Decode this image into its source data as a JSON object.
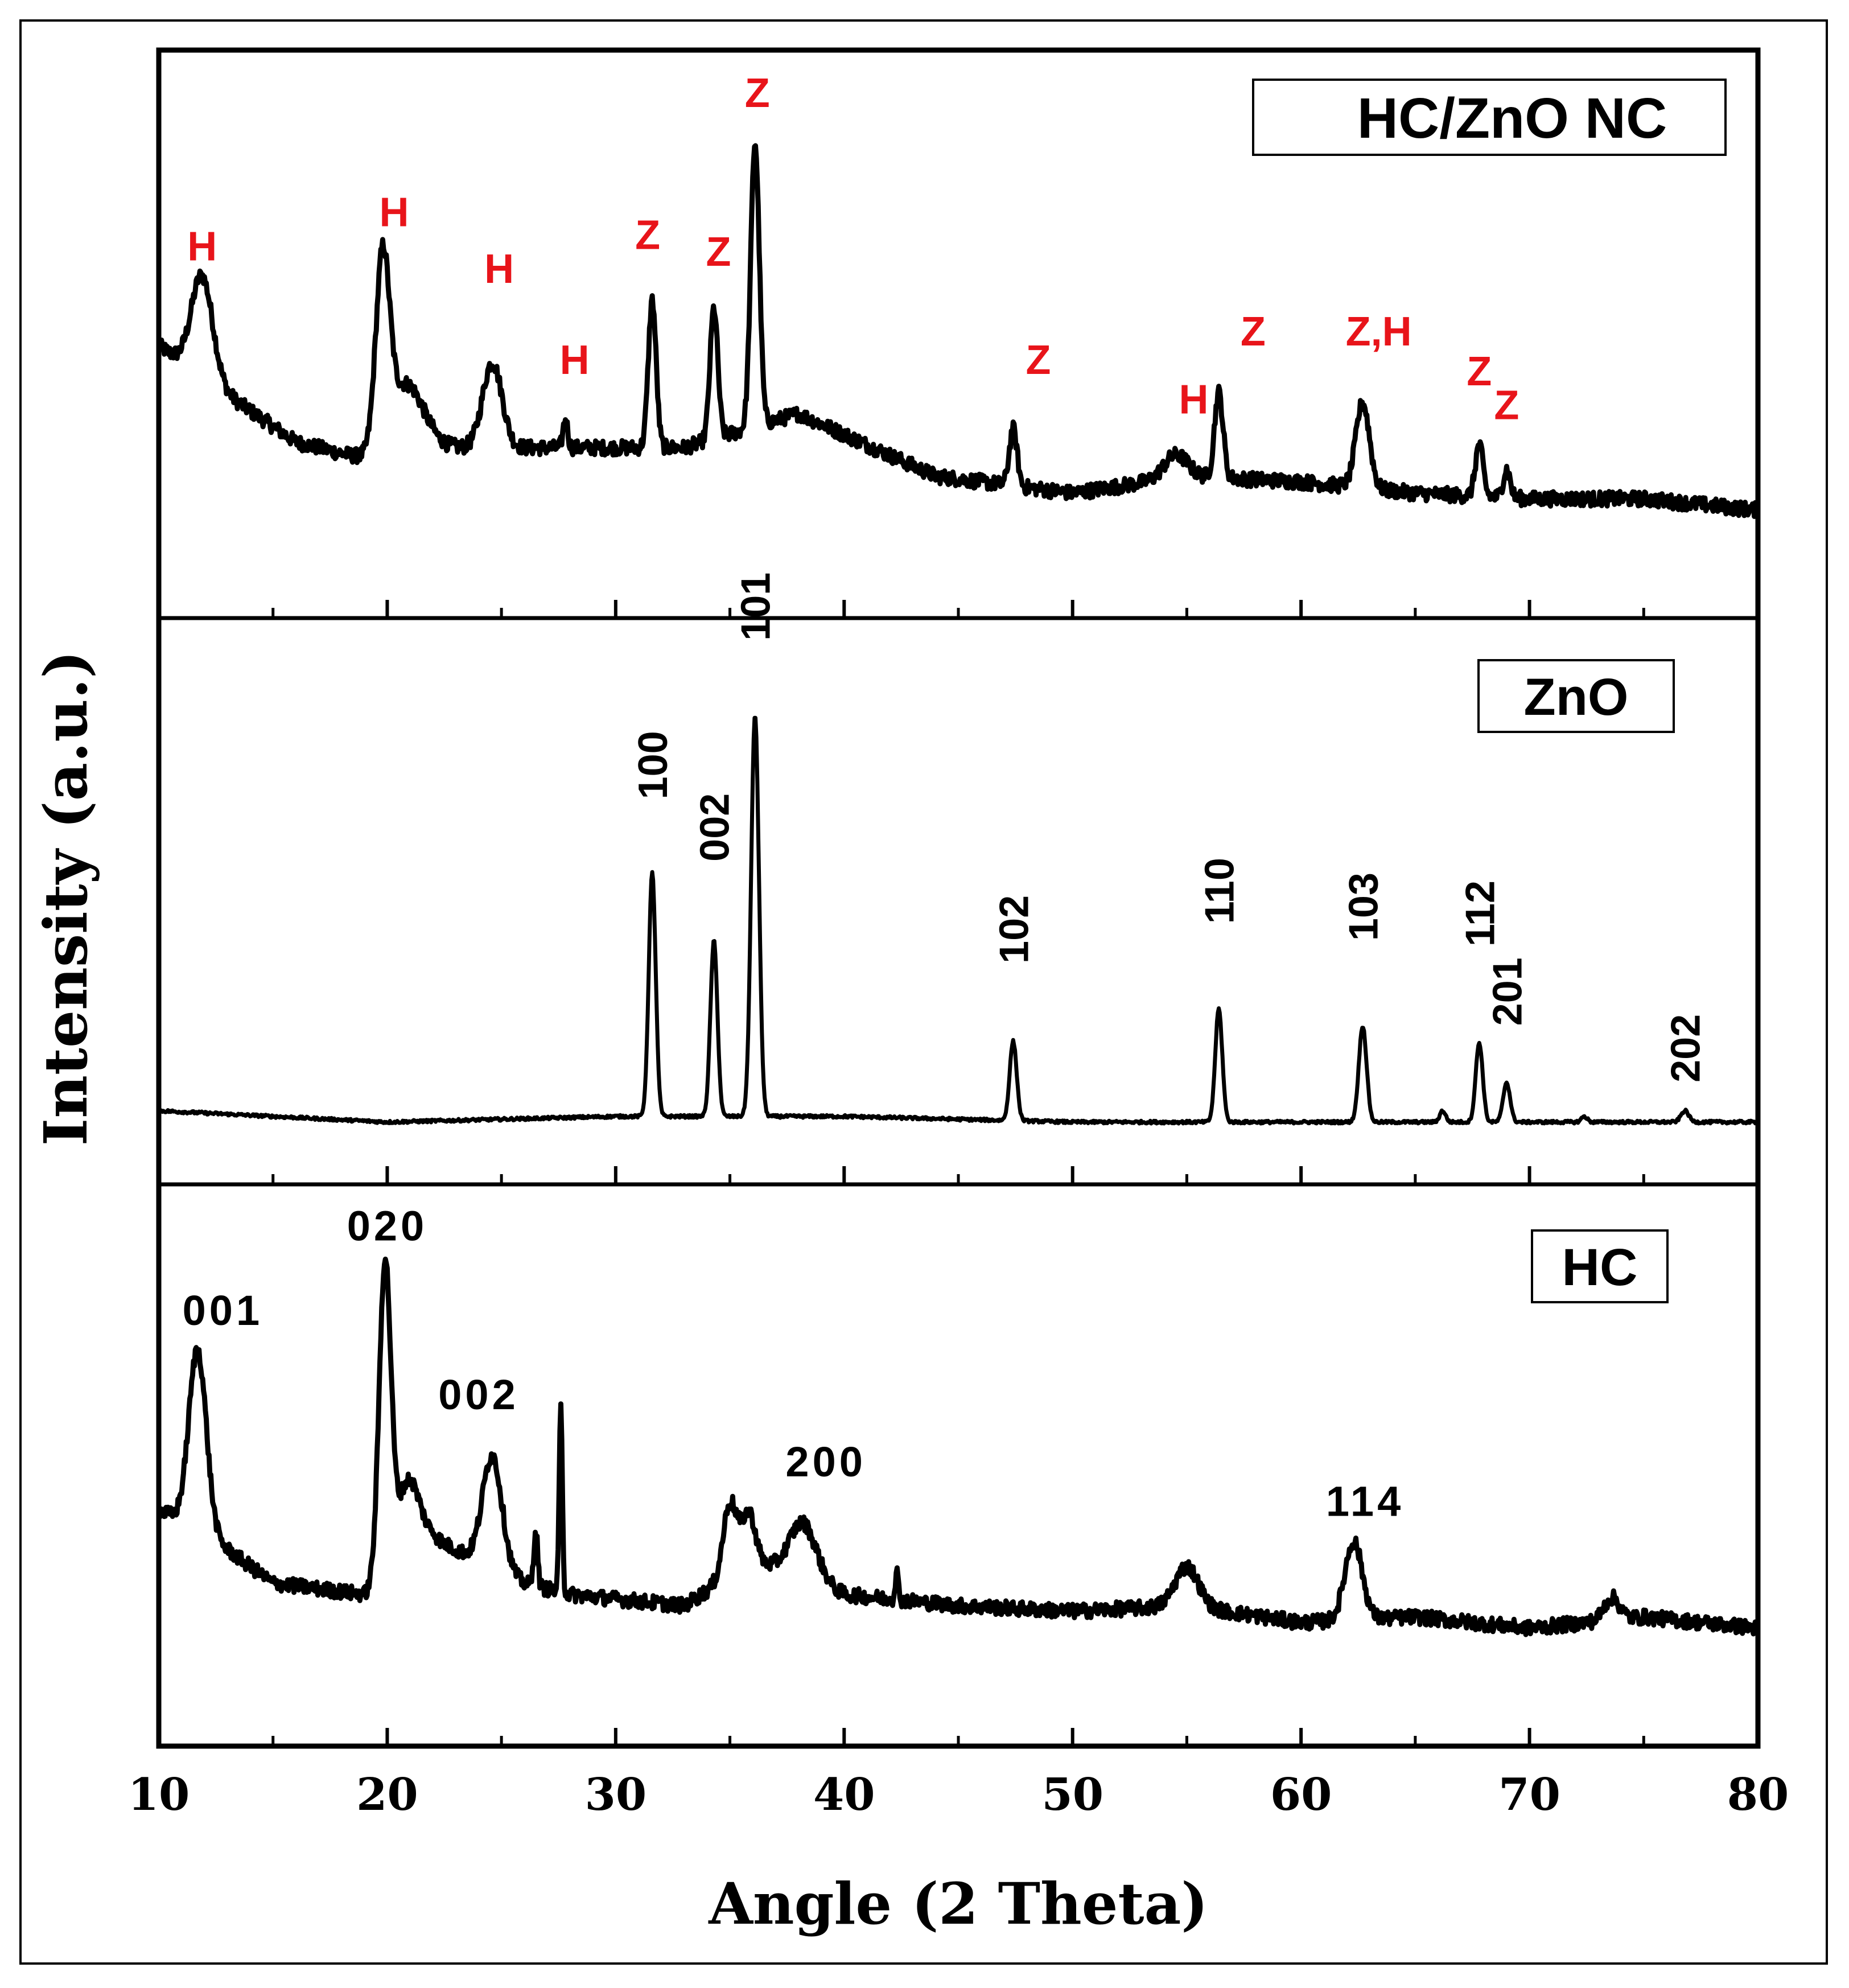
{
  "colors": {
    "trace": "#000000",
    "annotation_red": "#e8141a",
    "frame": "#000000",
    "background": "#ffffff"
  },
  "chart_data": {
    "type": "line",
    "title": "",
    "xlabel": "Angle (2 Theta)",
    "ylabel": "Intensity (a.u.)",
    "xlim": [
      10,
      80
    ],
    "xticks": [
      "10",
      "20",
      "30",
      "40",
      "50",
      "60",
      "70",
      "80"
    ],
    "grid": false,
    "panels": [
      {
        "name": "HC/ZnO NC",
        "legend": "HC/ZnO NC",
        "ylim": [
          0,
          100
        ],
        "baseline": [
          [
            10,
            48
          ],
          [
            12,
            42
          ],
          [
            16,
            31
          ],
          [
            19,
            28
          ],
          [
            22,
            30
          ],
          [
            28,
            30
          ],
          [
            33,
            30
          ],
          [
            38,
            36
          ],
          [
            44,
            25
          ],
          [
            50,
            22
          ],
          [
            55,
            25
          ],
          [
            60,
            24
          ],
          [
            65,
            22
          ],
          [
            70,
            21
          ],
          [
            75,
            21
          ],
          [
            80,
            19
          ]
        ],
        "peaks": [
          {
            "x": 11.9,
            "h": 18,
            "w": 0.55
          },
          {
            "x": 19.8,
            "h": 32,
            "w": 0.35
          },
          {
            "x": 20.8,
            "h": 12,
            "w": 0.9
          },
          {
            "x": 24.6,
            "h": 15,
            "w": 0.5
          },
          {
            "x": 27.8,
            "h": 5,
            "w": 0.12
          },
          {
            "x": 31.6,
            "h": 26,
            "w": 0.2
          },
          {
            "x": 34.3,
            "h": 23,
            "w": 0.2
          },
          {
            "x": 36.1,
            "h": 50,
            "w": 0.22
          },
          {
            "x": 47.4,
            "h": 10,
            "w": 0.2
          },
          {
            "x": 54.5,
            "h": 4,
            "w": 0.6
          },
          {
            "x": 56.4,
            "h": 15,
            "w": 0.22
          },
          {
            "x": 62.7,
            "h": 15,
            "w": 0.35
          },
          {
            "x": 67.8,
            "h": 9,
            "w": 0.2
          },
          {
            "x": 69.0,
            "h": 5,
            "w": 0.18
          }
        ],
        "annotations": [
          {
            "text": "H",
            "x": 11.9,
            "y": 63,
            "color": "red"
          },
          {
            "text": "H",
            "x": 20.3,
            "y": 69,
            "color": "red"
          },
          {
            "text": "H",
            "x": 24.9,
            "y": 59,
            "color": "red"
          },
          {
            "text": "H",
            "x": 28.2,
            "y": 43,
            "color": "red"
          },
          {
            "text": "Z",
            "x": 31.4,
            "y": 65,
            "color": "red"
          },
          {
            "text": "Z",
            "x": 34.5,
            "y": 62,
            "color": "red"
          },
          {
            "text": "Z",
            "x": 36.2,
            "y": 90,
            "color": "red"
          },
          {
            "text": "Z",
            "x": 48.5,
            "y": 43,
            "color": "red"
          },
          {
            "text": "H",
            "x": 55.3,
            "y": 36,
            "color": "red"
          },
          {
            "text": "Z",
            "x": 57.9,
            "y": 48,
            "color": "red"
          },
          {
            "text": "Z,H",
            "x": 63.4,
            "y": 48,
            "color": "red"
          },
          {
            "text": "Z",
            "x": 67.8,
            "y": 41,
            "color": "red"
          },
          {
            "text": "Z",
            "x": 69.0,
            "y": 35,
            "color": "red"
          }
        ]
      },
      {
        "name": "ZnO",
        "legend": "ZnO",
        "ylim": [
          0,
          100
        ],
        "baseline": [
          [
            10,
            13
          ],
          [
            20,
            11
          ],
          [
            30,
            12
          ],
          [
            40,
            12
          ],
          [
            50,
            11
          ],
          [
            60,
            11
          ],
          [
            70,
            11
          ],
          [
            80,
            11
          ]
        ],
        "peaks": [
          {
            "x": 31.6,
            "h": 43,
            "w": 0.18
          },
          {
            "x": 34.3,
            "h": 31,
            "w": 0.18
          },
          {
            "x": 36.1,
            "h": 71,
            "w": 0.2
          },
          {
            "x": 47.4,
            "h": 14,
            "w": 0.18
          },
          {
            "x": 56.4,
            "h": 20,
            "w": 0.18
          },
          {
            "x": 62.7,
            "h": 17,
            "w": 0.2
          },
          {
            "x": 66.2,
            "h": 2,
            "w": 0.15
          },
          {
            "x": 67.8,
            "h": 14,
            "w": 0.18
          },
          {
            "x": 69.0,
            "h": 7,
            "w": 0.18
          },
          {
            "x": 72.4,
            "h": 1,
            "w": 0.15
          },
          {
            "x": 76.8,
            "h": 2,
            "w": 0.2
          }
        ],
        "annotations": [
          {
            "text": "100",
            "x": 31.6,
            "y": 68,
            "color": "black",
            "rotate": true
          },
          {
            "text": "002",
            "x": 34.3,
            "y": 57,
            "color": "black",
            "rotate": true
          },
          {
            "text": "101",
            "x": 36.1,
            "y": 96,
            "color": "black",
            "rotate": true
          },
          {
            "text": "102",
            "x": 47.4,
            "y": 39,
            "color": "black",
            "rotate": true
          },
          {
            "text": "110",
            "x": 56.4,
            "y": 46,
            "color": "black",
            "rotate": true
          },
          {
            "text": "103",
            "x": 62.7,
            "y": 43,
            "color": "black",
            "rotate": true
          },
          {
            "text": "112",
            "x": 67.8,
            "y": 42,
            "color": "black",
            "rotate": true
          },
          {
            "text": "201",
            "x": 69.0,
            "y": 28,
            "color": "black",
            "rotate": true
          },
          {
            "text": "202",
            "x": 76.8,
            "y": 18,
            "color": "black",
            "rotate": true
          }
        ]
      },
      {
        "name": "HC",
        "legend": "HC",
        "ylim": [
          0,
          100
        ],
        "baseline": [
          [
            10,
            42
          ],
          [
            12,
            38
          ],
          [
            15,
            29
          ],
          [
            19,
            27
          ],
          [
            22,
            37
          ],
          [
            26,
            29
          ],
          [
            28,
            27
          ],
          [
            33,
            25
          ],
          [
            36,
            33
          ],
          [
            40,
            27
          ],
          [
            45,
            25
          ],
          [
            50,
            24
          ],
          [
            55,
            25
          ],
          [
            60,
            22
          ],
          [
            65,
            23
          ],
          [
            70,
            21
          ],
          [
            75,
            23
          ],
          [
            80,
            21
          ]
        ],
        "peaks": [
          {
            "x": 11.7,
            "h": 32,
            "w": 0.45
          },
          {
            "x": 19.9,
            "h": 55,
            "w": 0.3
          },
          {
            "x": 20.9,
            "h": 14,
            "w": 0.6
          },
          {
            "x": 24.6,
            "h": 20,
            "w": 0.5
          },
          {
            "x": 26.5,
            "h": 10,
            "w": 0.1
          },
          {
            "x": 27.6,
            "h": 33,
            "w": 0.08
          },
          {
            "x": 35.0,
            "h": 13,
            "w": 0.35
          },
          {
            "x": 35.8,
            "h": 9,
            "w": 0.35
          },
          {
            "x": 38.2,
            "h": 10,
            "w": 0.7
          },
          {
            "x": 42.3,
            "h": 5,
            "w": 0.08
          },
          {
            "x": 55.0,
            "h": 7,
            "w": 0.6
          },
          {
            "x": 62.3,
            "h": 14,
            "w": 0.45
          },
          {
            "x": 73.6,
            "h": 4,
            "w": 0.4
          }
        ],
        "annotations": [
          {
            "text": "001",
            "x": 12.8,
            "y": 75,
            "color": "black"
          },
          {
            "text": "020",
            "x": 20.0,
            "y": 90,
            "color": "black"
          },
          {
            "text": "002",
            "x": 24.0,
            "y": 60,
            "color": "black"
          },
          {
            "text": "200",
            "x": 39.2,
            "y": 48,
            "color": "black"
          },
          {
            "text": "114",
            "x": 62.8,
            "y": 41,
            "color": "black"
          }
        ]
      }
    ]
  }
}
